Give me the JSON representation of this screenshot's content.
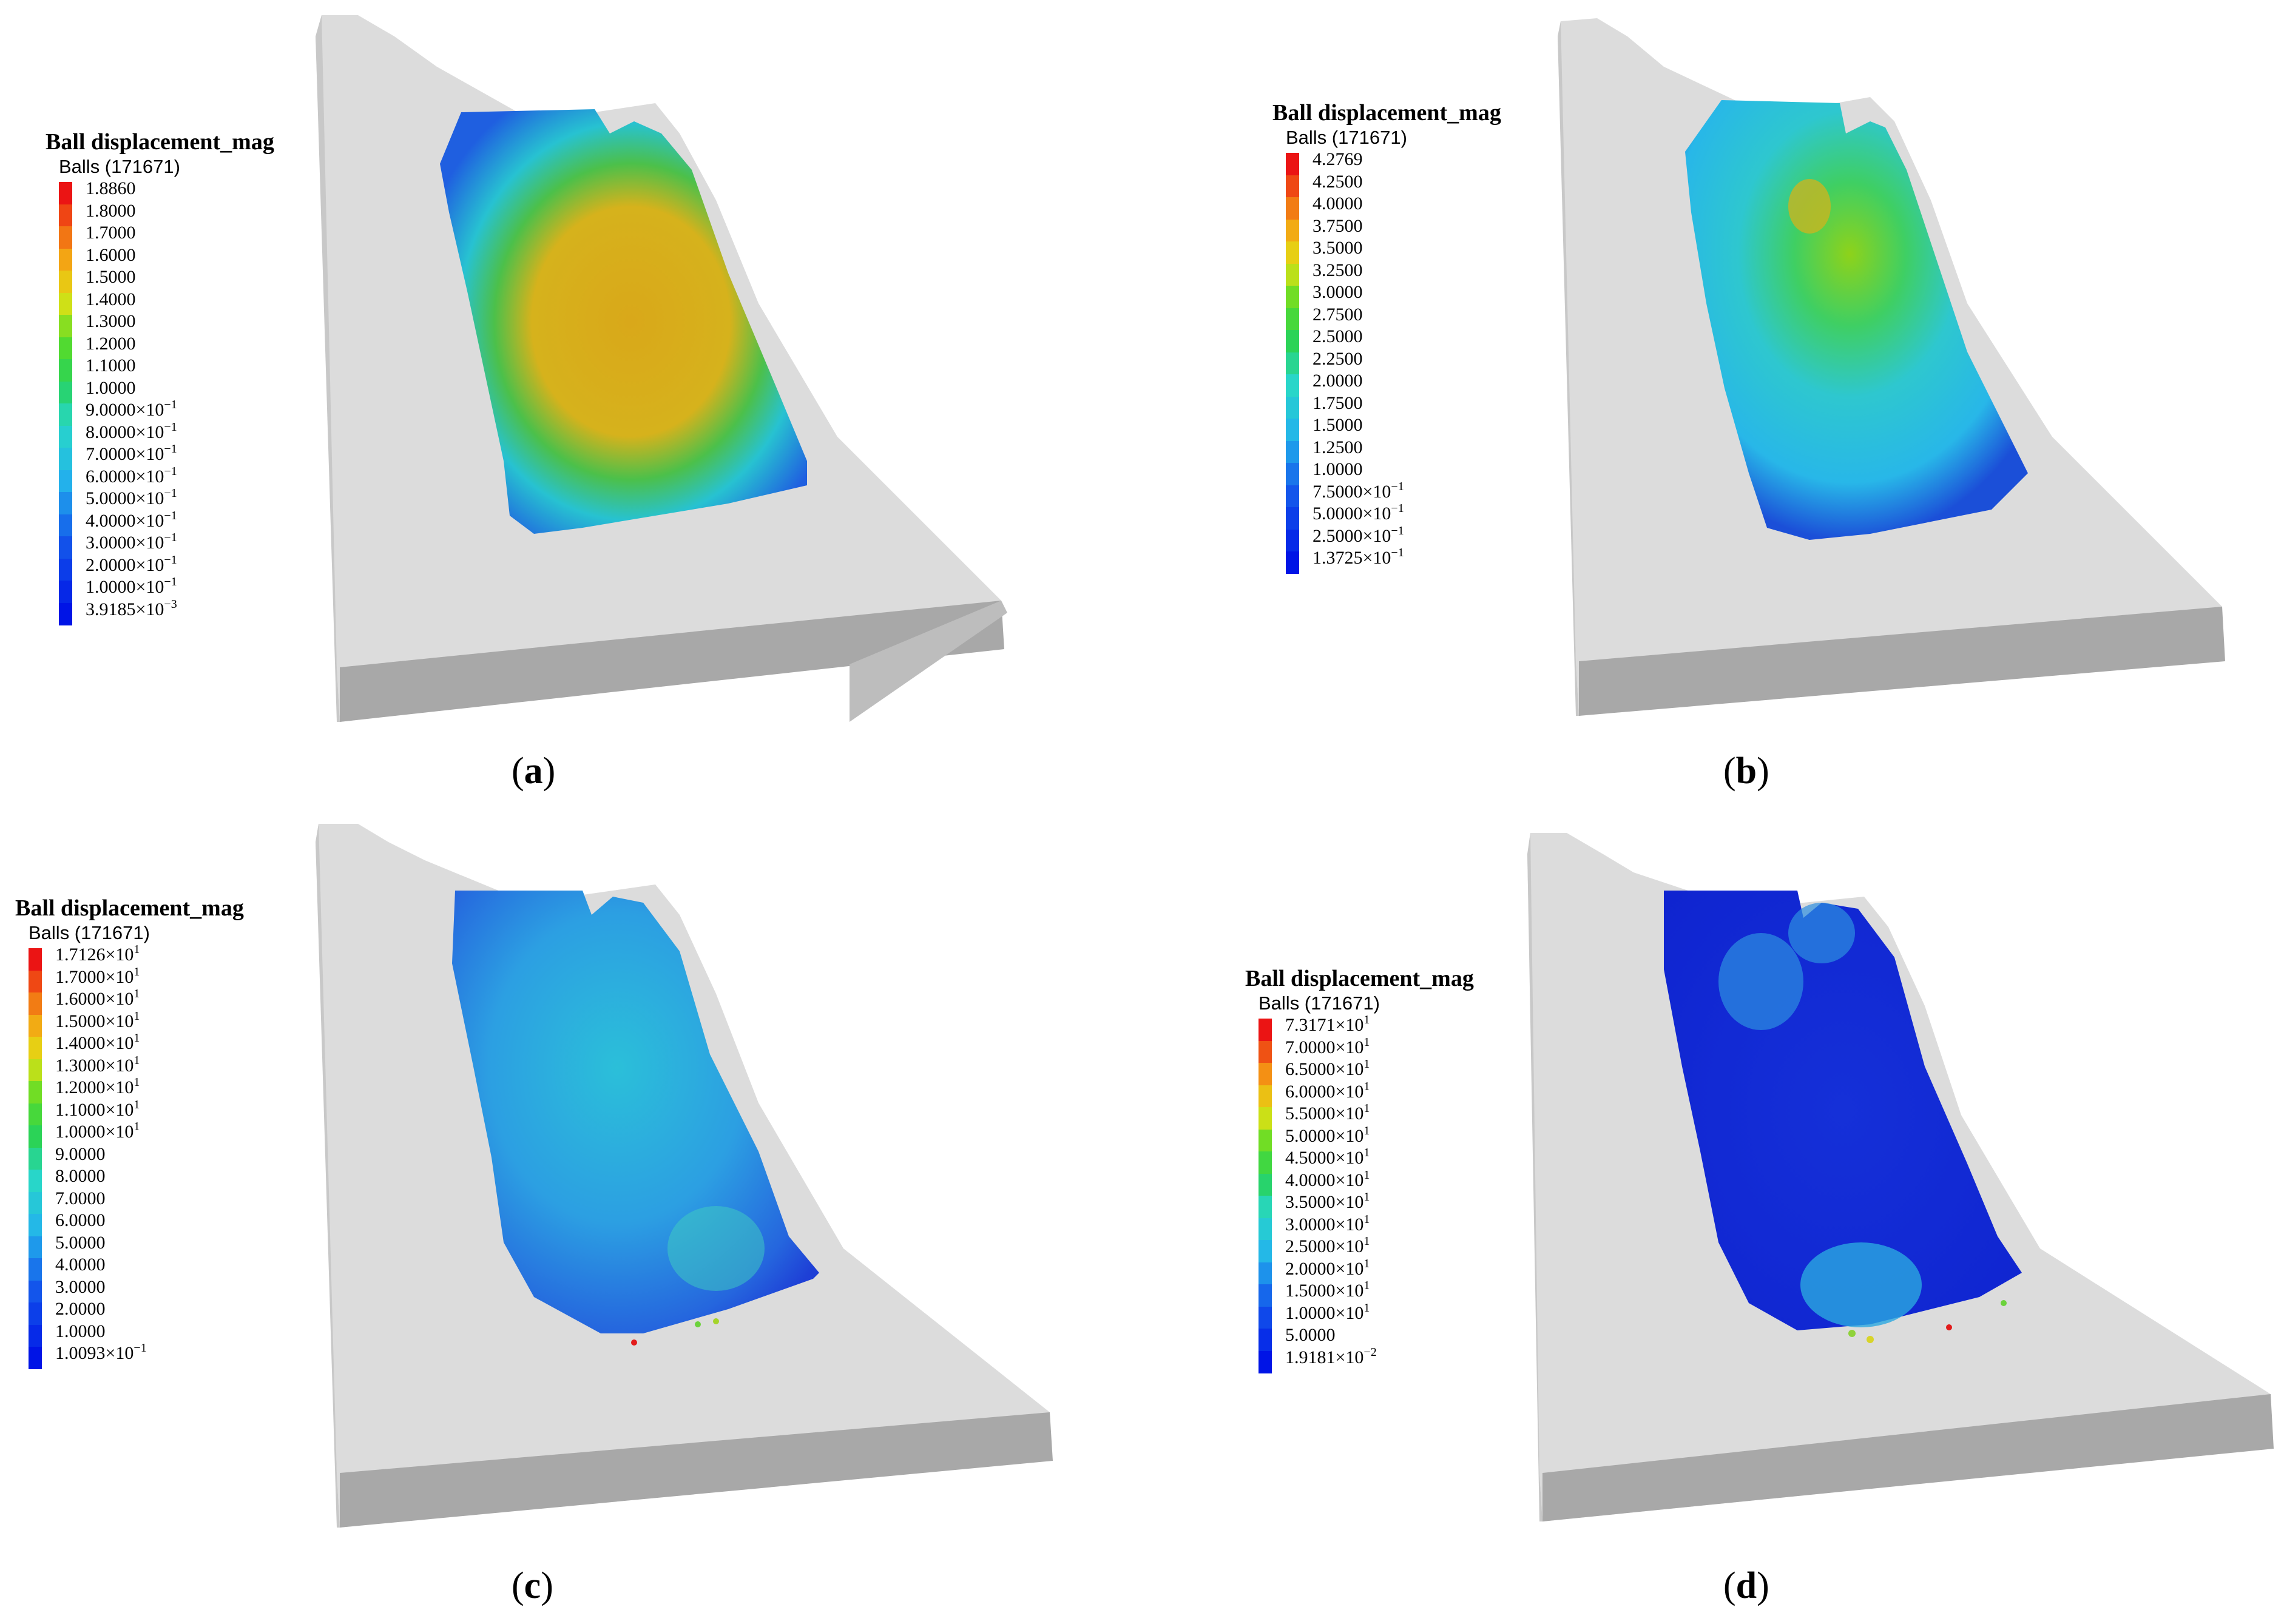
{
  "legend_title": "Ball displacement_mag",
  "legend_subtitle": "Balls (171671)",
  "panels": [
    {
      "id": "a",
      "caption_letter": "a",
      "ticks": [
        {
          "m": "1.8860",
          "e": ""
        },
        {
          "m": "1.8000",
          "e": ""
        },
        {
          "m": "1.7000",
          "e": ""
        },
        {
          "m": "1.6000",
          "e": ""
        },
        {
          "m": "1.5000",
          "e": ""
        },
        {
          "m": "1.4000",
          "e": ""
        },
        {
          "m": "1.3000",
          "e": ""
        },
        {
          "m": "1.2000",
          "e": ""
        },
        {
          "m": "1.1000",
          "e": ""
        },
        {
          "m": "1.0000",
          "e": ""
        },
        {
          "m": "9.0000×10",
          "e": "−1"
        },
        {
          "m": "8.0000×10",
          "e": "−1"
        },
        {
          "m": "7.0000×10",
          "e": "−1"
        },
        {
          "m": "6.0000×10",
          "e": "−1"
        },
        {
          "m": "5.0000×10",
          "e": "−1"
        },
        {
          "m": "4.0000×10",
          "e": "−1"
        },
        {
          "m": "3.0000×10",
          "e": "−1"
        },
        {
          "m": "2.0000×10",
          "e": "−1"
        },
        {
          "m": "1.0000×10",
          "e": "−1"
        },
        {
          "m": "3.9185×10",
          "e": "−3"
        }
      ]
    },
    {
      "id": "b",
      "caption_letter": "b",
      "ticks": [
        {
          "m": "4.2769",
          "e": ""
        },
        {
          "m": "4.2500",
          "e": ""
        },
        {
          "m": "4.0000",
          "e": ""
        },
        {
          "m": "3.7500",
          "e": ""
        },
        {
          "m": "3.5000",
          "e": ""
        },
        {
          "m": "3.2500",
          "e": ""
        },
        {
          "m": "3.0000",
          "e": ""
        },
        {
          "m": "2.7500",
          "e": ""
        },
        {
          "m": "2.5000",
          "e": ""
        },
        {
          "m": "2.2500",
          "e": ""
        },
        {
          "m": "2.0000",
          "e": ""
        },
        {
          "m": "1.7500",
          "e": ""
        },
        {
          "m": "1.5000",
          "e": ""
        },
        {
          "m": "1.2500",
          "e": ""
        },
        {
          "m": "1.0000",
          "e": ""
        },
        {
          "m": "7.5000×10",
          "e": "−1"
        },
        {
          "m": "5.0000×10",
          "e": "−1"
        },
        {
          "m": "2.5000×10",
          "e": "−1"
        },
        {
          "m": "1.3725×10",
          "e": "−1"
        }
      ]
    },
    {
      "id": "c",
      "caption_letter": "c",
      "ticks": [
        {
          "m": "1.7126×10",
          "e": "1"
        },
        {
          "m": "1.7000×10",
          "e": "1"
        },
        {
          "m": "1.6000×10",
          "e": "1"
        },
        {
          "m": "1.5000×10",
          "e": "1"
        },
        {
          "m": "1.4000×10",
          "e": "1"
        },
        {
          "m": "1.3000×10",
          "e": "1"
        },
        {
          "m": "1.2000×10",
          "e": "1"
        },
        {
          "m": "1.1000×10",
          "e": "1"
        },
        {
          "m": "1.0000×10",
          "e": "1"
        },
        {
          "m": "9.0000",
          "e": ""
        },
        {
          "m": "8.0000",
          "e": ""
        },
        {
          "m": "7.0000",
          "e": ""
        },
        {
          "m": "6.0000",
          "e": ""
        },
        {
          "m": "5.0000",
          "e": ""
        },
        {
          "m": "4.0000",
          "e": ""
        },
        {
          "m": "3.0000",
          "e": ""
        },
        {
          "m": "2.0000",
          "e": ""
        },
        {
          "m": "1.0000",
          "e": ""
        },
        {
          "m": "1.0093×10",
          "e": "−1"
        }
      ]
    },
    {
      "id": "d",
      "caption_letter": "d",
      "ticks": [
        {
          "m": "7.3171×10",
          "e": "1"
        },
        {
          "m": "7.0000×10",
          "e": "1"
        },
        {
          "m": "6.5000×10",
          "e": "1"
        },
        {
          "m": "6.0000×10",
          "e": "1"
        },
        {
          "m": "5.5000×10",
          "e": "1"
        },
        {
          "m": "5.0000×10",
          "e": "1"
        },
        {
          "m": "4.5000×10",
          "e": "1"
        },
        {
          "m": "4.0000×10",
          "e": "1"
        },
        {
          "m": "3.5000×10",
          "e": "1"
        },
        {
          "m": "3.0000×10",
          "e": "1"
        },
        {
          "m": "2.5000×10",
          "e": "1"
        },
        {
          "m": "2.0000×10",
          "e": "1"
        },
        {
          "m": "1.5000×10",
          "e": "1"
        },
        {
          "m": "1.0000×10",
          "e": "1"
        },
        {
          "m": "5.0000",
          "e": ""
        },
        {
          "m": "1.9181×10",
          "e": "−2"
        }
      ]
    }
  ]
}
